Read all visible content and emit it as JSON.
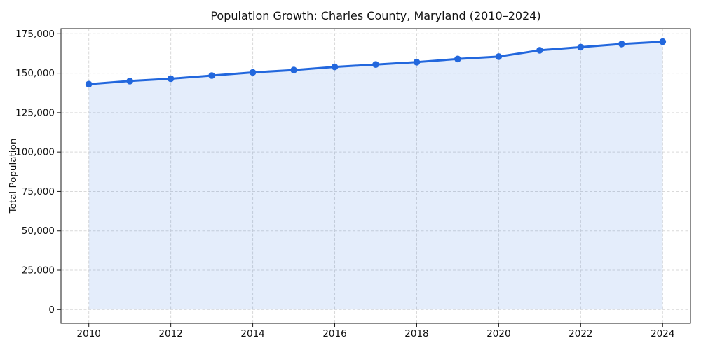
{
  "chart_data": {
    "type": "line",
    "title": "Population Growth: Charles County, Maryland (2010–2024)",
    "xlabel": "",
    "ylabel": "Total Population",
    "x": [
      2010,
      2011,
      2012,
      2013,
      2014,
      2015,
      2016,
      2017,
      2018,
      2019,
      2020,
      2021,
      2022,
      2023,
      2024
    ],
    "series": [
      {
        "name": "Total Population",
        "values": [
          143000,
          145000,
          146500,
          148500,
          150500,
          152000,
          154000,
          155500,
          157000,
          159000,
          160500,
          164500,
          166500,
          168500,
          170000
        ]
      }
    ],
    "xticks": [
      2010,
      2012,
      2014,
      2016,
      2018,
      2020,
      2022,
      2024
    ],
    "xticklabels": [
      "2010",
      "2012",
      "2014",
      "2016",
      "2018",
      "2020",
      "2022",
      "2024"
    ],
    "yticks": [
      0,
      25000,
      50000,
      75000,
      100000,
      125000,
      150000,
      175000
    ],
    "yticklabels": [
      "0",
      "25,000",
      "50,000",
      "75,000",
      "100,000",
      "125,000",
      "150,000",
      "175,000"
    ],
    "ylim": [
      -8900,
      178400
    ],
    "xlim": [
      2009.32,
      2024.68
    ],
    "grid": true,
    "grid_style": "dashed",
    "legend": false,
    "marker": "circle",
    "area_fill": true,
    "colors": {
      "line": "#2267DD",
      "marker": "#2267DD",
      "area": "rgba(34,103,221,0.12)",
      "grid": "#d9d9d9",
      "spine": "#1a1a1a",
      "text": "#111111",
      "background": "#ffffff"
    }
  }
}
